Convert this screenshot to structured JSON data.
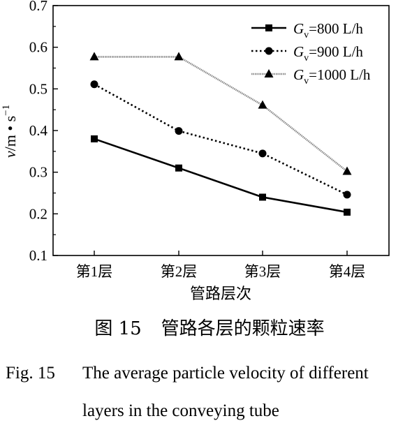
{
  "chart_data": {
    "type": "line",
    "categories": [
      "第1层",
      "第2层",
      "第3层",
      "第4层"
    ],
    "series": [
      {
        "name_prefix": "G",
        "name_sub": "v",
        "name_suffix": "=800 L/h",
        "marker": "square",
        "dash": "solid",
        "color": "#000000",
        "values": [
          0.38,
          0.31,
          0.24,
          0.204
        ]
      },
      {
        "name_prefix": "G",
        "name_sub": "v",
        "name_suffix": "=900 L/h",
        "marker": "circle",
        "dash": "dotted",
        "color": "#000000",
        "values": [
          0.511,
          0.399,
          0.345,
          0.246
        ]
      },
      {
        "name_prefix": "G",
        "name_sub": "v",
        "name_suffix": "=1000 L/h",
        "marker": "triangle",
        "dash": "gray",
        "color": "#000000",
        "values": [
          0.577,
          0.577,
          0.461,
          0.302
        ]
      }
    ],
    "xlabel": "管路层次",
    "ylabel_v": "v",
    "ylabel_unit": "/m • s",
    "ylabel_exp": "−1",
    "ylim": [
      0.1,
      0.7
    ],
    "yticks": [
      "0.1",
      "0.2",
      "0.3",
      "0.4",
      "0.5",
      "0.6",
      "0.7"
    ],
    "legend_position": "top-right"
  },
  "caption": {
    "cn_number": "图 15",
    "cn_title": "管路各层的颗粒速率",
    "en_fig": "Fig. 15",
    "en_line1": "The average particle velocity of different",
    "en_line2": "layers in the conveying tube"
  }
}
